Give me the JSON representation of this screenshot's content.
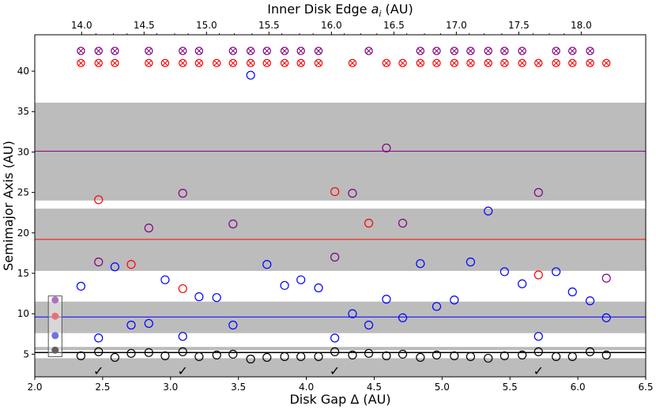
{
  "chart_data": {
    "type": "scatter",
    "xlabel": "Disk Gap Δ (AU)",
    "ylabel": "Semimajor Axis (AU)",
    "top_xlabel_main": "Inner Disk Edge ",
    "top_xlabel_var": "a",
    "top_xlabel_sub": "i",
    "top_xlabel_unit": " (AU)",
    "xlim": [
      2.0,
      6.5
    ],
    "ylim": [
      2.2,
      44.5
    ],
    "x_ticks": [
      2.0,
      2.5,
      3.0,
      3.5,
      4.0,
      4.5,
      5.0,
      5.5,
      6.0,
      6.5
    ],
    "x_tick_labels": [
      "2.0",
      "2.5",
      "3.0",
      "3.5",
      "4.0",
      "4.5",
      "5.0",
      "5.5",
      "6.0",
      "6.5"
    ],
    "y_ticks": [
      5,
      10,
      15,
      20,
      25,
      30,
      35,
      40
    ],
    "y_tick_labels": [
      "5",
      "10",
      "15",
      "20",
      "25",
      "30",
      "35",
      "40"
    ],
    "top_x_ticks": [
      {
        "x": 2.345,
        "label": "14.0"
      },
      {
        "x": 2.805,
        "label": "14.5"
      },
      {
        "x": 3.265,
        "label": "15.0"
      },
      {
        "x": 3.725,
        "label": "15.5"
      },
      {
        "x": 4.185,
        "label": "16.0"
      },
      {
        "x": 4.645,
        "label": "16.5"
      },
      {
        "x": 5.105,
        "label": "17.0"
      },
      {
        "x": 5.565,
        "label": "17.5"
      },
      {
        "x": 6.025,
        "label": "18.0"
      }
    ],
    "top_x_minor": [
      2.45,
      2.58,
      2.68,
      2.9,
      3.03,
      3.13,
      3.36,
      3.47,
      3.6,
      3.82,
      3.95,
      4.05,
      4.28,
      4.4,
      4.52,
      4.74,
      4.87,
      4.99,
      5.2,
      5.31,
      5.44,
      5.67,
      5.79,
      5.9
    ],
    "bands": [
      {
        "y0": 2.2,
        "y1": 4.5
      },
      {
        "y0": 5.5,
        "y1": 5.9
      },
      {
        "y0": 7.6,
        "y1": 11.5
      },
      {
        "y0": 15.3,
        "y1": 23.0
      },
      {
        "y0": 24.0,
        "y1": 36.1
      }
    ],
    "hlines": [
      {
        "y": 5.2,
        "color": "#000000"
      },
      {
        "y": 9.6,
        "color": "#0000ff"
      },
      {
        "y": 19.2,
        "color": "#ff0000"
      },
      {
        "y": 30.1,
        "color": "#800080"
      }
    ],
    "checkmark_symbol": "✓",
    "checkmarks": [
      2.47,
      3.09,
      4.21,
      5.71
    ],
    "checkmark_y": 3.0,
    "legend_box": {
      "x0": 2.1,
      "x1": 2.2,
      "y0": 4.7,
      "y1": 12.2
    },
    "legend_dots": [
      {
        "y": 11.7,
        "color": "#b070c0"
      },
      {
        "y": 9.7,
        "color": "#e87070"
      },
      {
        "y": 7.3,
        "color": "#7070e8"
      },
      {
        "y": 5.5,
        "color": "#606060"
      }
    ],
    "series": [
      {
        "name": "black",
        "color": "#000000",
        "points": [
          [
            2.34,
            4.8
          ],
          [
            2.47,
            5.3
          ],
          [
            2.59,
            4.6
          ],
          [
            2.71,
            5.1
          ],
          [
            2.84,
            5.2
          ],
          [
            2.96,
            4.8
          ],
          [
            3.09,
            5.3
          ],
          [
            3.21,
            4.7
          ],
          [
            3.34,
            4.9
          ],
          [
            3.46,
            5.0
          ],
          [
            3.59,
            4.4
          ],
          [
            3.71,
            4.6
          ],
          [
            3.84,
            4.7
          ],
          [
            3.96,
            4.7
          ],
          [
            4.09,
            4.7
          ],
          [
            4.21,
            5.3
          ],
          [
            4.34,
            4.9
          ],
          [
            4.46,
            5.1
          ],
          [
            4.59,
            4.8
          ],
          [
            4.71,
            5.0
          ],
          [
            4.84,
            4.6
          ],
          [
            4.96,
            4.9
          ],
          [
            5.09,
            4.8
          ],
          [
            5.21,
            4.7
          ],
          [
            5.34,
            4.5
          ],
          [
            5.46,
            4.8
          ],
          [
            5.59,
            4.9
          ],
          [
            5.71,
            5.3
          ],
          [
            5.84,
            4.7
          ],
          [
            5.96,
            4.7
          ],
          [
            6.09,
            5.3
          ],
          [
            6.21,
            4.9
          ]
        ]
      },
      {
        "name": "blue",
        "color": "#0000ff",
        "points": [
          [
            2.34,
            13.4
          ],
          [
            2.47,
            7.0
          ],
          [
            2.59,
            15.8
          ],
          [
            2.71,
            8.6
          ],
          [
            2.84,
            8.8
          ],
          [
            2.96,
            14.2
          ],
          [
            3.09,
            7.2
          ],
          [
            3.21,
            12.1
          ],
          [
            3.34,
            12.0
          ],
          [
            3.46,
            8.6
          ],
          [
            3.59,
            39.5
          ],
          [
            3.71,
            16.1
          ],
          [
            3.84,
            13.5
          ],
          [
            3.96,
            14.2
          ],
          [
            4.09,
            13.2
          ],
          [
            4.21,
            7.0
          ],
          [
            4.34,
            10.0
          ],
          [
            4.46,
            8.6
          ],
          [
            4.59,
            11.8
          ],
          [
            4.71,
            9.5
          ],
          [
            4.84,
            16.2
          ],
          [
            4.96,
            10.9
          ],
          [
            5.09,
            11.7
          ],
          [
            5.21,
            16.4
          ],
          [
            5.34,
            22.7
          ],
          [
            5.46,
            15.2
          ],
          [
            5.59,
            13.7
          ],
          [
            5.71,
            7.2
          ],
          [
            5.84,
            15.2
          ],
          [
            5.96,
            12.7
          ],
          [
            6.09,
            11.6
          ],
          [
            6.21,
            9.5
          ]
        ]
      },
      {
        "name": "red",
        "color": "#ff0000",
        "points": [
          [
            2.47,
            24.1
          ],
          [
            2.71,
            16.1
          ],
          [
            3.09,
            13.1
          ],
          [
            4.21,
            25.1
          ],
          [
            4.46,
            21.2
          ],
          [
            5.71,
            14.8
          ]
        ]
      },
      {
        "name": "purple",
        "color": "#800080",
        "points": [
          [
            2.47,
            16.4
          ],
          [
            2.84,
            20.6
          ],
          [
            3.09,
            24.9
          ],
          [
            3.46,
            21.1
          ],
          [
            4.21,
            17.0
          ],
          [
            4.34,
            24.9
          ],
          [
            4.59,
            30.5
          ],
          [
            4.71,
            21.2
          ],
          [
            5.71,
            25.0
          ],
          [
            6.21,
            14.4
          ]
        ]
      }
    ],
    "ejected_y": 41.0,
    "ejected_purple_y": 42.5,
    "ejected_red_x": [
      2.34,
      2.47,
      2.59,
      2.84,
      2.96,
      3.09,
      3.21,
      3.34,
      3.46,
      3.59,
      3.71,
      3.84,
      3.96,
      4.09,
      4.34,
      4.59,
      4.71,
      4.84,
      4.96,
      5.09,
      5.21,
      5.34,
      5.46,
      5.59,
      5.71,
      5.84,
      5.96,
      6.09,
      6.21
    ],
    "ejected_purple_x": [
      2.34,
      2.47,
      2.59,
      2.84,
      3.09,
      3.21,
      3.46,
      3.59,
      3.71,
      3.84,
      3.96,
      4.09,
      4.46,
      4.84,
      4.96,
      5.09,
      5.21,
      5.34,
      5.46,
      5.59,
      5.84,
      5.96,
      6.09
    ]
  }
}
